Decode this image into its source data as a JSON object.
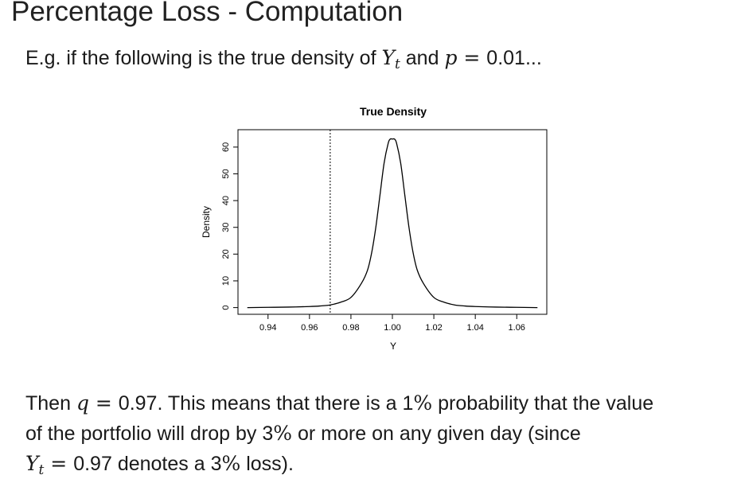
{
  "slide": {
    "title": "Percentage Loss - Computation",
    "intro": {
      "text1": "E.g. if the following is the true density of ",
      "var": "Y",
      "sub": "t",
      "text2": " and ",
      "p_var": "p",
      "eq": " = ",
      "p_value": "0.01",
      "ellipsis": "..."
    },
    "conclusion": {
      "line1_pre": "Then ",
      "q_var": "q",
      "eq": " = ",
      "q_value": "0.97",
      "line1_post": ". This means that there is a 1",
      "percent": "%",
      "line1_end": " probability that the value",
      "line2_pre": "of the portfolio will drop by 3",
      "line2_post": " or more on any given day (since",
      "line3_var": "Y",
      "line3_sub": "t",
      "line3_eq": " = ",
      "line3_value": "0.97",
      "line3_mid": " denotes a 3",
      "line3_end": " loss)."
    }
  },
  "chart_data": {
    "type": "line",
    "title": "True Density",
    "xlabel": "Y",
    "ylabel": "Density",
    "xlim": [
      0.9255,
      1.0745
    ],
    "ylim": [
      -2.5,
      66.5
    ],
    "xticks": [
      0.94,
      0.96,
      0.98,
      1.0,
      1.02,
      1.04,
      1.06
    ],
    "xtick_labels": [
      "0.94",
      "0.96",
      "0.98",
      "1.00",
      "1.02",
      "1.04",
      "1.06"
    ],
    "yticks": [
      0,
      10,
      20,
      30,
      40,
      50,
      60
    ],
    "ytick_labels": [
      "0",
      "10",
      "20",
      "30",
      "40",
      "50",
      "60"
    ],
    "series": [
      {
        "name": "density",
        "x": [
          0.93,
          0.94,
          0.95,
          0.96,
          0.965,
          0.97,
          0.975,
          0.98,
          0.985,
          0.988,
          0.99,
          0.992,
          0.994,
          0.996,
          0.998,
          0.999,
          1.0,
          1.001,
          1.002,
          1.004,
          1.006,
          1.008,
          1.01,
          1.012,
          1.015,
          1.02,
          1.025,
          1.03,
          1.035,
          1.04,
          1.05,
          1.06,
          1.07
        ],
        "y": [
          0.0,
          0.1,
          0.2,
          0.4,
          0.6,
          1.0,
          2.0,
          3.8,
          9.0,
          14.0,
          20.5,
          30.0,
          42.0,
          54.0,
          61.5,
          63.0,
          63.0,
          63.0,
          61.5,
          54.0,
          42.0,
          30.0,
          20.5,
          14.0,
          9.0,
          3.8,
          2.0,
          1.0,
          0.6,
          0.4,
          0.2,
          0.1,
          0.0
        ]
      }
    ],
    "vline": {
      "x": 0.97,
      "style": "dotted"
    },
    "grid": false,
    "legend": "none"
  }
}
